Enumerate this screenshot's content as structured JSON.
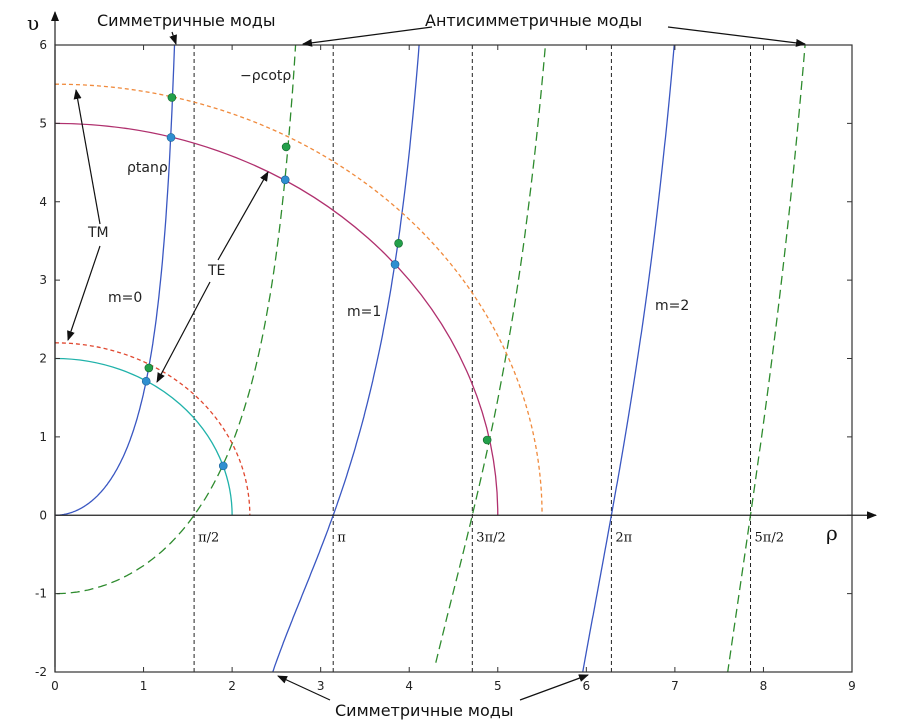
{
  "chart_data": {
    "type": "line",
    "xlabel": "ρ",
    "ylabel": "υ",
    "xlim": [
      0,
      9
    ],
    "ylim": [
      -2,
      6
    ],
    "x_ticks": [
      "0",
      "1",
      "2",
      "3",
      "4",
      "5",
      "6",
      "7",
      "8",
      "9"
    ],
    "y_ticks": [
      "-2",
      "-1",
      "0",
      "1",
      "2",
      "3",
      "4",
      "5",
      "6"
    ],
    "pi_ticks": [
      "π/2",
      "π",
      "3π/2",
      "2π",
      "5π/2"
    ],
    "series": [
      {
        "name": "ρtanρ",
        "style": "solid",
        "color": "#3a57c2"
      },
      {
        "name": "−ρcotρ",
        "style": "dashed",
        "color": "#2e8b2e"
      }
    ],
    "circles": [
      {
        "radius": 2.0,
        "mode": "TE",
        "style": "solid",
        "color": "#20b2aa"
      },
      {
        "radius": 2.2,
        "mode": "TM",
        "style": "dashed",
        "color": "#e0472f"
      },
      {
        "radius": 5.0,
        "mode": "TE",
        "style": "solid",
        "color": "#b0306e"
      },
      {
        "radius": 5.5,
        "mode": "TM",
        "style": "dashed",
        "color": "#f08a3c"
      }
    ],
    "intersections_TE": [
      [
        1.03,
        1.71
      ],
      [
        1.9,
        0.63
      ],
      [
        1.31,
        4.82
      ],
      [
        2.6,
        4.28
      ],
      [
        3.84,
        3.2
      ]
    ],
    "intersections_TM": [
      [
        1.06,
        1.88
      ],
      [
        1.32,
        5.33
      ],
      [
        2.61,
        4.7
      ],
      [
        3.88,
        3.47
      ],
      [
        4.88,
        0.96
      ]
    ],
    "labels": {
      "sym_top": "Симметричные моды",
      "antisym_top": "Антисимметричные моды",
      "sym_bottom": "Симметричные моды",
      "tan_label": "ρtanρ",
      "cot_label": "−ρcotρ",
      "tm": "TM",
      "te": "TE",
      "m0": "m=0",
      "m1": "m=1",
      "m2": "m=2"
    }
  }
}
